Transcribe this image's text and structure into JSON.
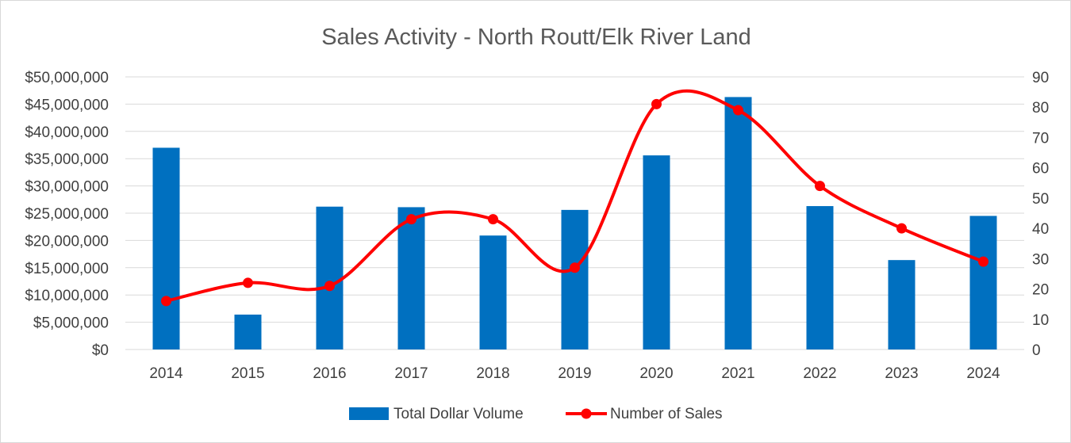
{
  "chart_data": {
    "type": "bar",
    "title": "Sales Activity - North Routt/Elk River Land",
    "categories": [
      "2014",
      "2015",
      "2016",
      "2017",
      "2018",
      "2019",
      "2020",
      "2021",
      "2022",
      "2023",
      "2024"
    ],
    "series": [
      {
        "name": "Total Dollar Volume",
        "type": "bar",
        "axis": "left",
        "color": "#0070C0",
        "values": [
          37000000,
          6400000,
          26200000,
          26100000,
          20900000,
          25600000,
          35600000,
          46300000,
          26300000,
          16400000,
          24500000
        ]
      },
      {
        "name": "Number of Sales",
        "type": "line",
        "smooth": true,
        "axis": "right",
        "color": "#FF0000",
        "values": [
          16,
          22,
          21,
          43,
          43,
          27,
          81,
          79,
          54,
          40,
          29
        ]
      }
    ],
    "y_left": {
      "ylim": [
        0,
        50000000
      ],
      "ticks": [
        0,
        5000000,
        10000000,
        15000000,
        20000000,
        25000000,
        30000000,
        35000000,
        40000000,
        45000000,
        50000000
      ],
      "tick_labels": [
        "$0",
        "$5,000,000",
        "$10,000,000",
        "$15,000,000",
        "$20,000,000",
        "$25,000,000",
        "$30,000,000",
        "$35,000,000",
        "$40,000,000",
        "$45,000,000",
        "$50,000,000"
      ]
    },
    "y_right": {
      "ylim": [
        0,
        90
      ],
      "ticks": [
        0,
        10,
        20,
        30,
        40,
        50,
        60,
        70,
        80,
        90
      ],
      "tick_labels": [
        "0",
        "10",
        "20",
        "30",
        "40",
        "50",
        "60",
        "70",
        "80",
        "90"
      ]
    },
    "grid": true,
    "legend_position": "bottom-center"
  }
}
